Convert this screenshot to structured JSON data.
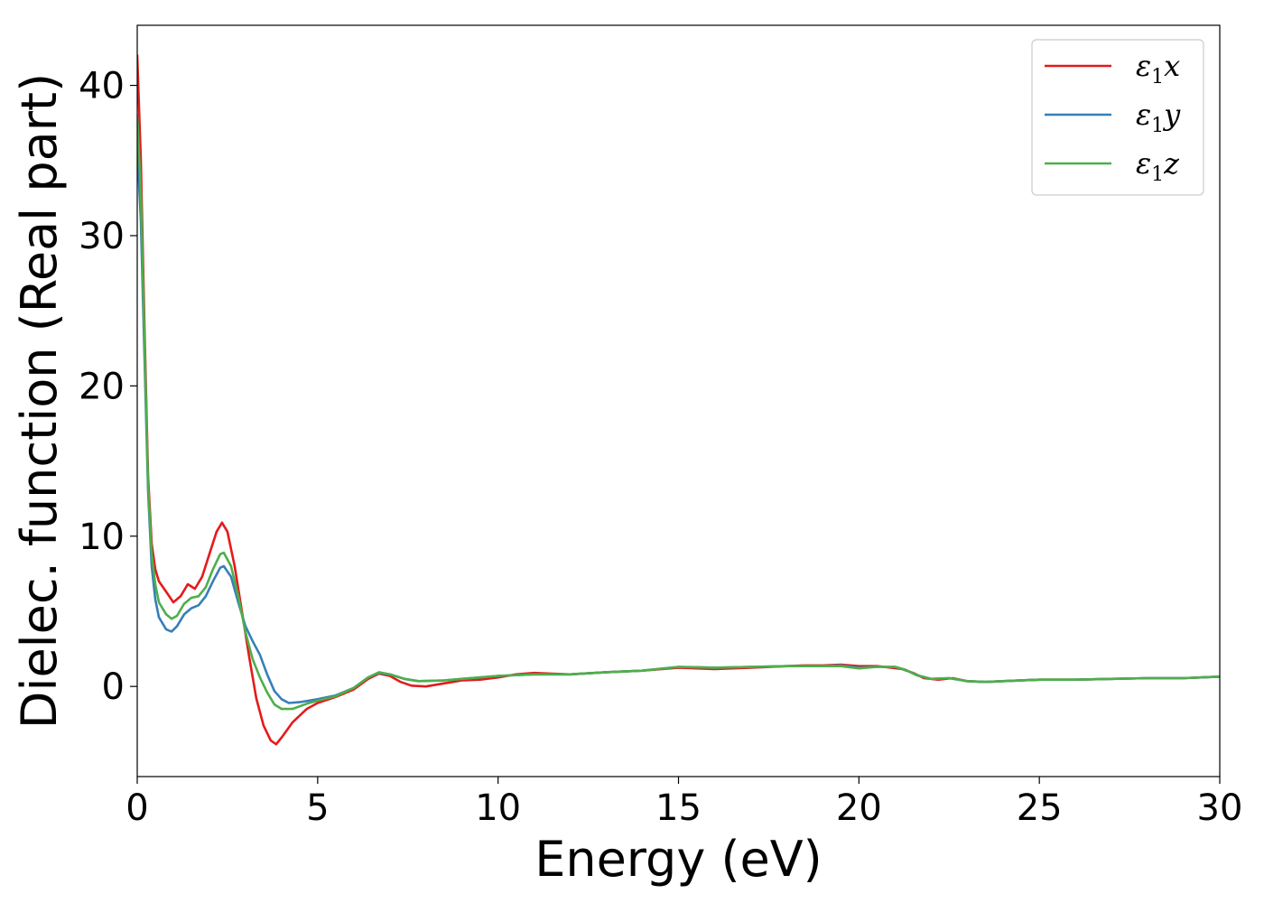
{
  "chart_data": {
    "type": "line",
    "xlabel": "Energy (eV)",
    "ylabel": "Dielec. function (Real part)",
    "xlim": [
      0,
      30
    ],
    "ylim": [
      -6,
      44
    ],
    "xticks": [
      0,
      5,
      10,
      15,
      20,
      25,
      30
    ],
    "yticks": [
      0,
      10,
      20,
      30,
      40
    ],
    "grid": false,
    "legend_position": "top-right",
    "series": [
      {
        "name": "ε₁x",
        "legend_base": "ε",
        "legend_sub": "1",
        "legend_var": "x",
        "color": "#e41a1c",
        "points": [
          [
            0,
            42
          ],
          [
            0.1,
            35
          ],
          [
            0.2,
            24
          ],
          [
            0.3,
            14
          ],
          [
            0.4,
            9.5
          ],
          [
            0.5,
            7.8
          ],
          [
            0.6,
            7.0
          ],
          [
            0.8,
            6.3
          ],
          [
            1.0,
            5.6
          ],
          [
            1.2,
            6.0
          ],
          [
            1.4,
            6.8
          ],
          [
            1.6,
            6.5
          ],
          [
            1.8,
            7.3
          ],
          [
            2.0,
            8.8
          ],
          [
            2.2,
            10.3
          ],
          [
            2.35,
            10.9
          ],
          [
            2.5,
            10.3
          ],
          [
            2.7,
            8.0
          ],
          [
            2.9,
            5.0
          ],
          [
            3.1,
            2.0
          ],
          [
            3.3,
            -0.8
          ],
          [
            3.5,
            -2.6
          ],
          [
            3.7,
            -3.6
          ],
          [
            3.85,
            -3.85
          ],
          [
            4.0,
            -3.4
          ],
          [
            4.3,
            -2.4
          ],
          [
            4.7,
            -1.5
          ],
          [
            5.0,
            -1.1
          ],
          [
            5.5,
            -0.7
          ],
          [
            6.0,
            -0.2
          ],
          [
            6.4,
            0.5
          ],
          [
            6.7,
            0.85
          ],
          [
            7.0,
            0.7
          ],
          [
            7.3,
            0.3
          ],
          [
            7.6,
            0.05
          ],
          [
            8.0,
            0.0
          ],
          [
            8.5,
            0.2
          ],
          [
            9.0,
            0.4
          ],
          [
            9.5,
            0.45
          ],
          [
            10.0,
            0.6
          ],
          [
            10.5,
            0.8
          ],
          [
            11.0,
            0.9
          ],
          [
            11.5,
            0.85
          ],
          [
            12.0,
            0.8
          ],
          [
            13.0,
            0.95
          ],
          [
            14.0,
            1.05
          ],
          [
            15.0,
            1.25
          ],
          [
            15.5,
            1.2
          ],
          [
            16.0,
            1.15
          ],
          [
            17.0,
            1.25
          ],
          [
            18.0,
            1.35
          ],
          [
            18.5,
            1.4
          ],
          [
            19.0,
            1.4
          ],
          [
            19.5,
            1.45
          ],
          [
            20.0,
            1.35
          ],
          [
            20.5,
            1.35
          ],
          [
            20.9,
            1.25
          ],
          [
            21.2,
            1.15
          ],
          [
            21.5,
            0.9
          ],
          [
            21.8,
            0.55
          ],
          [
            22.2,
            0.45
          ],
          [
            22.6,
            0.55
          ],
          [
            23.0,
            0.35
          ],
          [
            23.5,
            0.3
          ],
          [
            24.0,
            0.35
          ],
          [
            25.0,
            0.45
          ],
          [
            26.0,
            0.45
          ],
          [
            27.0,
            0.5
          ],
          [
            28.0,
            0.55
          ],
          [
            29.0,
            0.55
          ],
          [
            30.0,
            0.65
          ]
        ]
      },
      {
        "name": "ε₁y",
        "legend_base": "ε",
        "legend_sub": "1",
        "legend_var": "y",
        "color": "#377eb8",
        "points": [
          [
            0,
            36
          ],
          [
            0.1,
            31
          ],
          [
            0.2,
            22
          ],
          [
            0.3,
            13
          ],
          [
            0.4,
            8.0
          ],
          [
            0.5,
            5.8
          ],
          [
            0.6,
            4.6
          ],
          [
            0.8,
            3.8
          ],
          [
            0.95,
            3.65
          ],
          [
            1.1,
            4.0
          ],
          [
            1.3,
            4.8
          ],
          [
            1.5,
            5.2
          ],
          [
            1.7,
            5.4
          ],
          [
            1.9,
            6.0
          ],
          [
            2.1,
            7.0
          ],
          [
            2.3,
            7.9
          ],
          [
            2.4,
            8.0
          ],
          [
            2.6,
            7.3
          ],
          [
            2.8,
            5.6
          ],
          [
            3.0,
            4.0
          ],
          [
            3.2,
            3.0
          ],
          [
            3.4,
            2.1
          ],
          [
            3.6,
            0.8
          ],
          [
            3.8,
            -0.3
          ],
          [
            4.0,
            -0.85
          ],
          [
            4.2,
            -1.1
          ],
          [
            4.5,
            -1.05
          ],
          [
            5.0,
            -0.85
          ],
          [
            5.5,
            -0.6
          ],
          [
            6.0,
            -0.1
          ],
          [
            6.4,
            0.6
          ],
          [
            6.7,
            0.9
          ],
          [
            7.0,
            0.8
          ],
          [
            7.4,
            0.5
          ],
          [
            7.8,
            0.35
          ],
          [
            8.5,
            0.4
          ],
          [
            9.0,
            0.5
          ],
          [
            10.0,
            0.7
          ],
          [
            11.0,
            0.8
          ],
          [
            12.0,
            0.8
          ],
          [
            13.0,
            0.95
          ],
          [
            14.0,
            1.05
          ],
          [
            15.0,
            1.3
          ],
          [
            16.0,
            1.25
          ],
          [
            17.0,
            1.3
          ],
          [
            18.0,
            1.35
          ],
          [
            19.0,
            1.35
          ],
          [
            19.5,
            1.4
          ],
          [
            20.0,
            1.25
          ],
          [
            20.5,
            1.3
          ],
          [
            21.0,
            1.3
          ],
          [
            21.3,
            1.1
          ],
          [
            21.6,
            0.75
          ],
          [
            22.0,
            0.5
          ],
          [
            22.5,
            0.55
          ],
          [
            23.0,
            0.35
          ],
          [
            23.5,
            0.3
          ],
          [
            24.0,
            0.35
          ],
          [
            25.0,
            0.45
          ],
          [
            26.0,
            0.45
          ],
          [
            27.0,
            0.5
          ],
          [
            28.0,
            0.55
          ],
          [
            29.0,
            0.55
          ],
          [
            30.0,
            0.65
          ]
        ]
      },
      {
        "name": "ε₁z",
        "legend_base": "ε",
        "legend_sub": "1",
        "legend_var": "z",
        "color": "#4daf4a",
        "points": [
          [
            0,
            38
          ],
          [
            0.1,
            33
          ],
          [
            0.2,
            23
          ],
          [
            0.3,
            13.5
          ],
          [
            0.4,
            8.8
          ],
          [
            0.5,
            6.8
          ],
          [
            0.6,
            5.6
          ],
          [
            0.8,
            4.8
          ],
          [
            0.95,
            4.5
          ],
          [
            1.1,
            4.7
          ],
          [
            1.3,
            5.5
          ],
          [
            1.5,
            5.9
          ],
          [
            1.7,
            6.0
          ],
          [
            1.9,
            6.6
          ],
          [
            2.1,
            7.8
          ],
          [
            2.3,
            8.8
          ],
          [
            2.4,
            8.9
          ],
          [
            2.6,
            8.0
          ],
          [
            2.8,
            6.0
          ],
          [
            3.0,
            3.6
          ],
          [
            3.2,
            1.8
          ],
          [
            3.4,
            0.6
          ],
          [
            3.6,
            -0.4
          ],
          [
            3.8,
            -1.2
          ],
          [
            4.0,
            -1.5
          ],
          [
            4.3,
            -1.5
          ],
          [
            4.7,
            -1.15
          ],
          [
            5.0,
            -0.95
          ],
          [
            5.5,
            -0.65
          ],
          [
            6.0,
            -0.1
          ],
          [
            6.4,
            0.6
          ],
          [
            6.7,
            0.95
          ],
          [
            7.0,
            0.8
          ],
          [
            7.4,
            0.5
          ],
          [
            7.8,
            0.35
          ],
          [
            8.5,
            0.4
          ],
          [
            9.0,
            0.5
          ],
          [
            10.0,
            0.7
          ],
          [
            11.0,
            0.8
          ],
          [
            12.0,
            0.8
          ],
          [
            13.0,
            0.95
          ],
          [
            14.0,
            1.05
          ],
          [
            15.0,
            1.3
          ],
          [
            16.0,
            1.25
          ],
          [
            17.0,
            1.3
          ],
          [
            18.0,
            1.35
          ],
          [
            19.0,
            1.35
          ],
          [
            19.5,
            1.35
          ],
          [
            20.0,
            1.2
          ],
          [
            20.5,
            1.3
          ],
          [
            21.0,
            1.3
          ],
          [
            21.3,
            1.1
          ],
          [
            21.6,
            0.75
          ],
          [
            22.0,
            0.5
          ],
          [
            22.5,
            0.55
          ],
          [
            23.0,
            0.35
          ],
          [
            23.5,
            0.3
          ],
          [
            24.0,
            0.35
          ],
          [
            25.0,
            0.45
          ],
          [
            26.0,
            0.45
          ],
          [
            27.0,
            0.5
          ],
          [
            28.0,
            0.55
          ],
          [
            29.0,
            0.55
          ],
          [
            30.0,
            0.65
          ]
        ]
      }
    ]
  }
}
